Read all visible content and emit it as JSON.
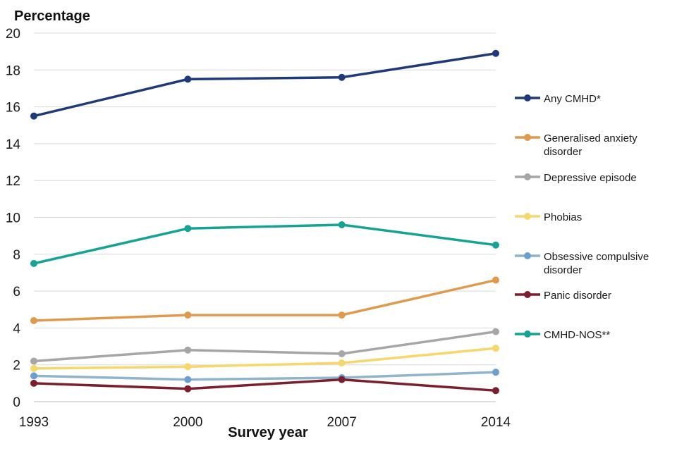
{
  "chart_data": {
    "type": "line",
    "title": "",
    "ylabel": "Percentage",
    "xlabel": "Survey year",
    "categories": [
      "1993",
      "2000",
      "2007",
      "2014"
    ],
    "ylim": [
      0,
      20
    ],
    "yticks": [
      0,
      2,
      4,
      6,
      8,
      10,
      12,
      14,
      16,
      18,
      20
    ],
    "grid": "horizontal",
    "legend_position": "right",
    "series": [
      {
        "name": "Any CMHD*",
        "legend_lines": [
          "Any CMHD*"
        ],
        "color": "#1f3a78",
        "values": [
          15.5,
          17.5,
          17.6,
          18.9
        ]
      },
      {
        "name": "Generalised anxiety disorder",
        "legend_lines": [
          "Generalised anxiety",
          "disorder"
        ],
        "color": "#e09a4e",
        "values": [
          4.4,
          4.7,
          4.7,
          6.6
        ]
      },
      {
        "name": "Depressive episode",
        "legend_lines": [
          "Depressive episode"
        ],
        "color": "#a6a6a6",
        "values": [
          2.2,
          2.8,
          2.6,
          3.8
        ]
      },
      {
        "name": "Phobias",
        "legend_lines": [
          "Phobias"
        ],
        "color": "#f5d76e",
        "values": [
          1.8,
          1.9,
          2.1,
          2.9
        ]
      },
      {
        "name": "Obsessive compulsive disorder",
        "legend_lines": [
          "Obsessive compulsive",
          "disorder"
        ],
        "color": "#8fb4cc",
        "marker_color": "#6a9fd0",
        "values": [
          1.4,
          1.2,
          1.3,
          1.6
        ]
      },
      {
        "name": "Panic disorder",
        "legend_lines": [
          "Panic disorder"
        ],
        "color": "#7b1f2e",
        "values": [
          1.0,
          0.7,
          1.2,
          0.6
        ]
      },
      {
        "name": "CMHD-NOS**",
        "legend_lines": [
          "CMHD-NOS**"
        ],
        "color": "#16a393",
        "values": [
          7.5,
          9.4,
          9.6,
          8.5
        ]
      }
    ]
  }
}
